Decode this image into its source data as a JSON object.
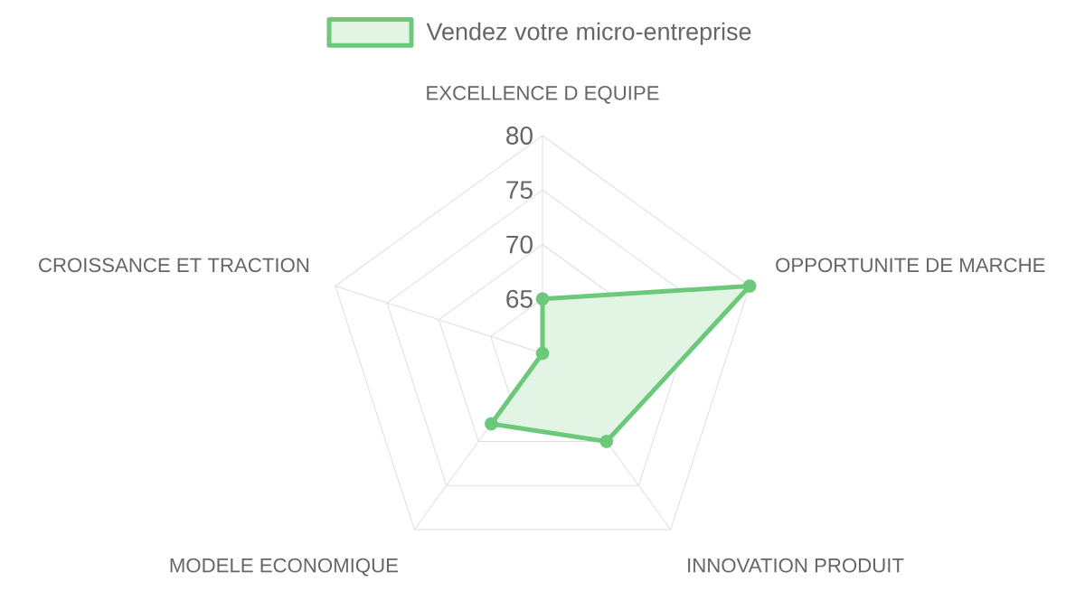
{
  "chart_data": {
    "type": "radar",
    "categories": [
      "EXCELLENCE D EQUIPE",
      "OPPORTUNITE DE MARCHE",
      "INNOVATION PRODUIT",
      "MODELE ECONOMIQUE",
      "CROISSANCE ET TRACTION"
    ],
    "series": [
      {
        "name": "Vendez votre micro-entreprise",
        "color": "#6cc97a",
        "values": [
          65,
          80,
          70,
          68,
          60
        ]
      }
    ],
    "ylim": [
      60,
      80
    ],
    "yticks": [
      65,
      70,
      75,
      80
    ],
    "grid": true,
    "legend": "top",
    "marker": "circle"
  }
}
